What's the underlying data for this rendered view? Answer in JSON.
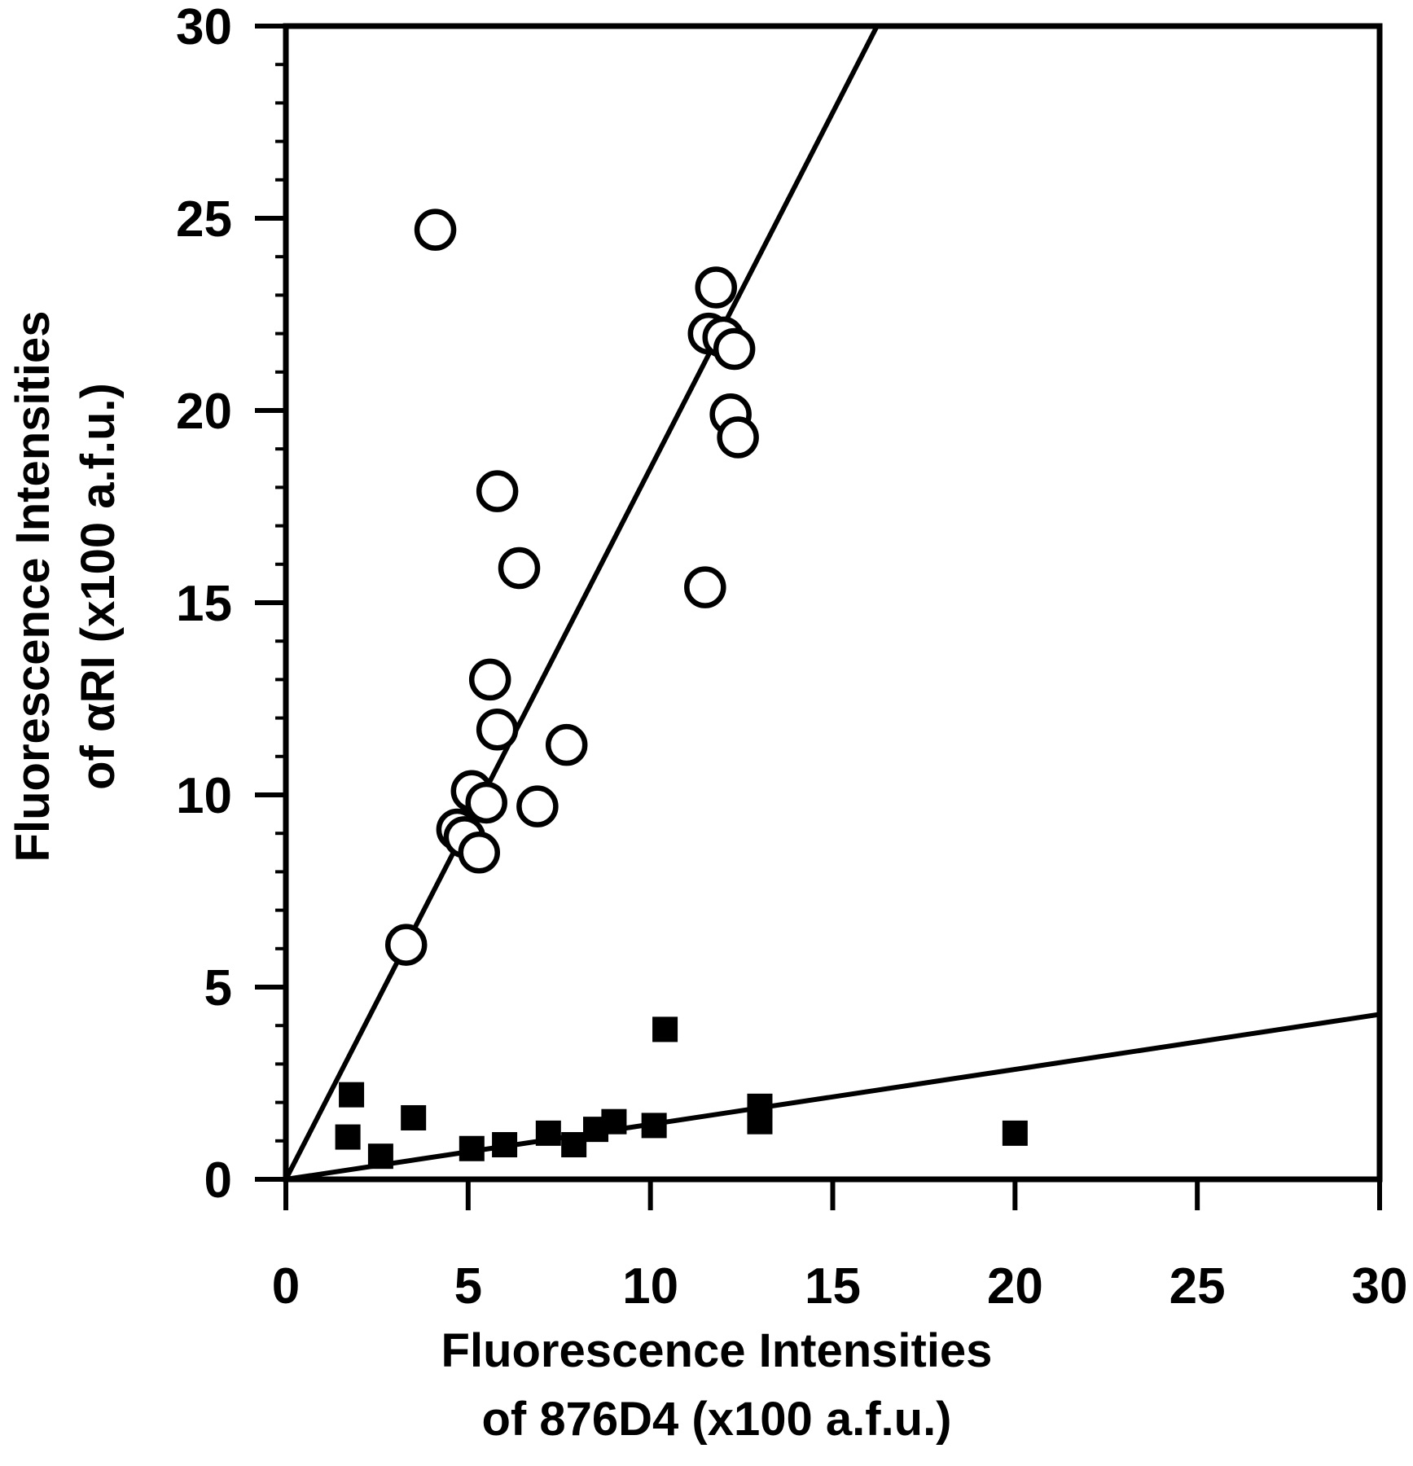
{
  "figure": {
    "background": "#ffffff",
    "ink_color": "#000000"
  },
  "chart_data": {
    "type": "scatter",
    "title": "",
    "xlabel_lines": [
      "Fluorescence Intensities",
      "of 876D4 (x100 a.f.u.)"
    ],
    "ylabel_lines": [
      "Fluorescence Intensities",
      "of αRI (x100 a.f.u.)"
    ],
    "xlabel": "Fluorescence Intensities of 876D4 (x100 a.f.u.)",
    "ylabel": "Fluorescence Intensities of αRI (x100 a.f.u.)",
    "xlim": [
      0,
      30
    ],
    "ylim": [
      0,
      30
    ],
    "xticks": [
      0,
      5,
      10,
      15,
      20,
      25,
      30
    ],
    "yticks": [
      0,
      5,
      10,
      15,
      20,
      25,
      30
    ],
    "y_minor_tick_step": 1,
    "grid": false,
    "legend": "none",
    "frame": "full-box",
    "marker_color": "#000000",
    "series": [
      {
        "name": "open-circles",
        "marker": "circle-open",
        "points": [
          [
            4.1,
            24.7
          ],
          [
            11.8,
            23.2
          ],
          [
            11.6,
            22.0
          ],
          [
            12.0,
            21.9
          ],
          [
            12.3,
            21.6
          ],
          [
            12.2,
            19.9
          ],
          [
            12.4,
            19.3
          ],
          [
            5.8,
            17.9
          ],
          [
            6.4,
            15.9
          ],
          [
            11.5,
            15.4
          ],
          [
            5.6,
            13.0
          ],
          [
            5.8,
            11.7
          ],
          [
            7.7,
            11.3
          ],
          [
            5.1,
            10.1
          ],
          [
            5.5,
            9.8
          ],
          [
            6.9,
            9.7
          ],
          [
            4.7,
            9.1
          ],
          [
            4.9,
            8.9
          ],
          [
            5.3,
            8.5
          ],
          [
            3.3,
            6.1
          ]
        ]
      },
      {
        "name": "filled-squares",
        "marker": "square-filled",
        "points": [
          [
            1.8,
            2.2
          ],
          [
            1.7,
            1.1
          ],
          [
            2.6,
            0.6
          ],
          [
            3.5,
            1.6
          ],
          [
            5.1,
            0.8
          ],
          [
            6.0,
            0.9
          ],
          [
            7.2,
            1.2
          ],
          [
            7.9,
            0.9
          ],
          [
            8.5,
            1.3
          ],
          [
            9.0,
            1.5
          ],
          [
            10.1,
            1.4
          ],
          [
            10.4,
            3.9
          ],
          [
            13.0,
            1.9
          ],
          [
            13.0,
            1.5
          ],
          [
            20.0,
            1.2
          ]
        ]
      }
    ],
    "fit_lines": [
      {
        "name": "open-circles-fit",
        "slope": 1.85,
        "intercept": 0,
        "x_range": [
          0,
          16.2
        ]
      },
      {
        "name": "filled-squares-fit",
        "slope": 0.143,
        "intercept": 0,
        "x_range": [
          0,
          30
        ]
      }
    ]
  }
}
